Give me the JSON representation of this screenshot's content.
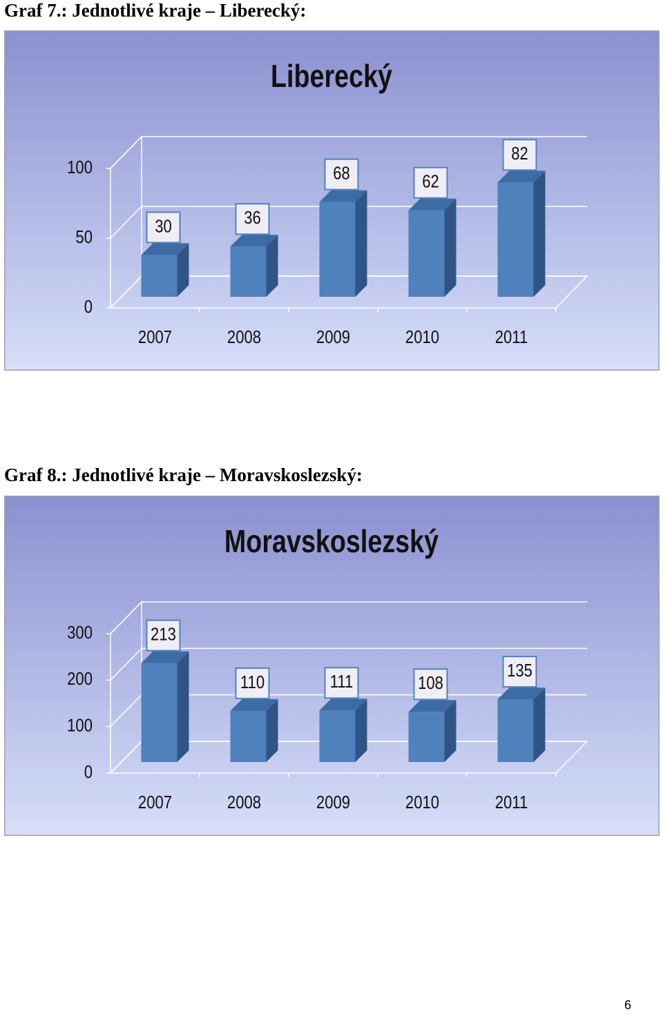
{
  "captions": [
    "Graf 7.: Jednotlivé kraje – Liberecký:",
    "Graf 8.: Jednotlivé kraje – Moravskoslezský:"
  ],
  "chart_data": [
    {
      "type": "bar",
      "title": "Liberecký",
      "categories": [
        "2007",
        "2008",
        "2009",
        "2010",
        "2011"
      ],
      "values": [
        30,
        36,
        68,
        62,
        82
      ],
      "color": "#4f81bd",
      "ylim": [
        0,
        100
      ],
      "yticks": [
        0,
        50,
        100
      ],
      "grid": true
    },
    {
      "type": "bar",
      "title": "Moravskoslezský",
      "categories": [
        "2007",
        "2008",
        "2009",
        "2010",
        "2011"
      ],
      "values": [
        213,
        110,
        111,
        108,
        135
      ],
      "color": "#4f81bd",
      "ylim": [
        0,
        300
      ],
      "yticks": [
        0,
        100,
        200,
        300
      ],
      "grid": true
    }
  ],
  "page_number": "6"
}
